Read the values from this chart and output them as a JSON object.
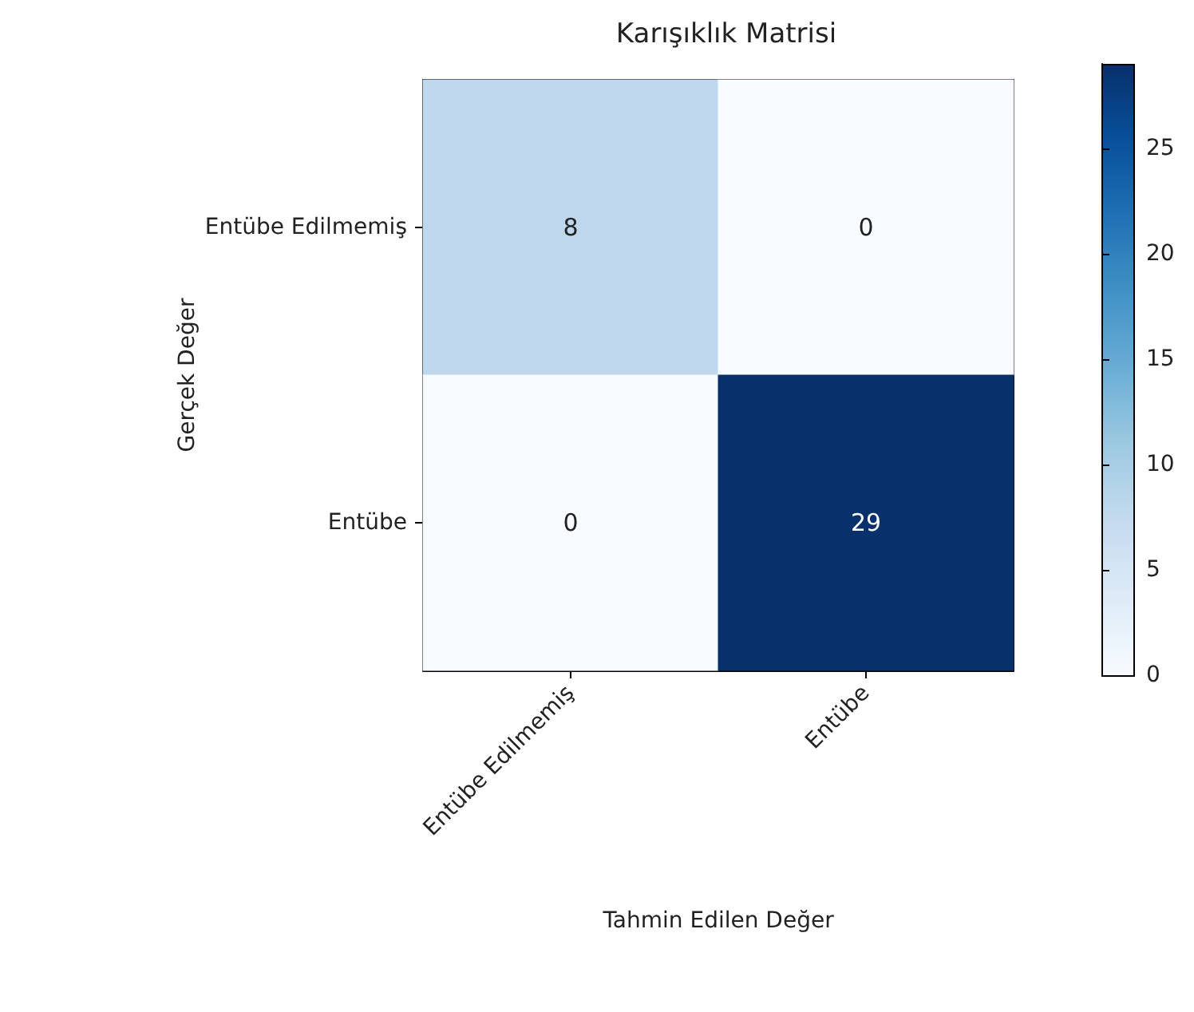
{
  "chart_data": {
    "type": "heatmap",
    "title": "Karışıklık Matrisi",
    "xlabel": "Tahmin Edilen Değer",
    "ylabel": "Gerçek Değer",
    "categories": [
      "Entübe Edilmemiş",
      "Entübe"
    ],
    "y_categories": [
      "Entübe Edilmemiş",
      "Entübe"
    ],
    "cells": [
      [
        8,
        0
      ],
      [
        0,
        29
      ]
    ],
    "clim": [
      0,
      29
    ],
    "cticks": [
      0,
      5,
      10,
      15,
      20,
      25
    ],
    "data_labels": true
  }
}
